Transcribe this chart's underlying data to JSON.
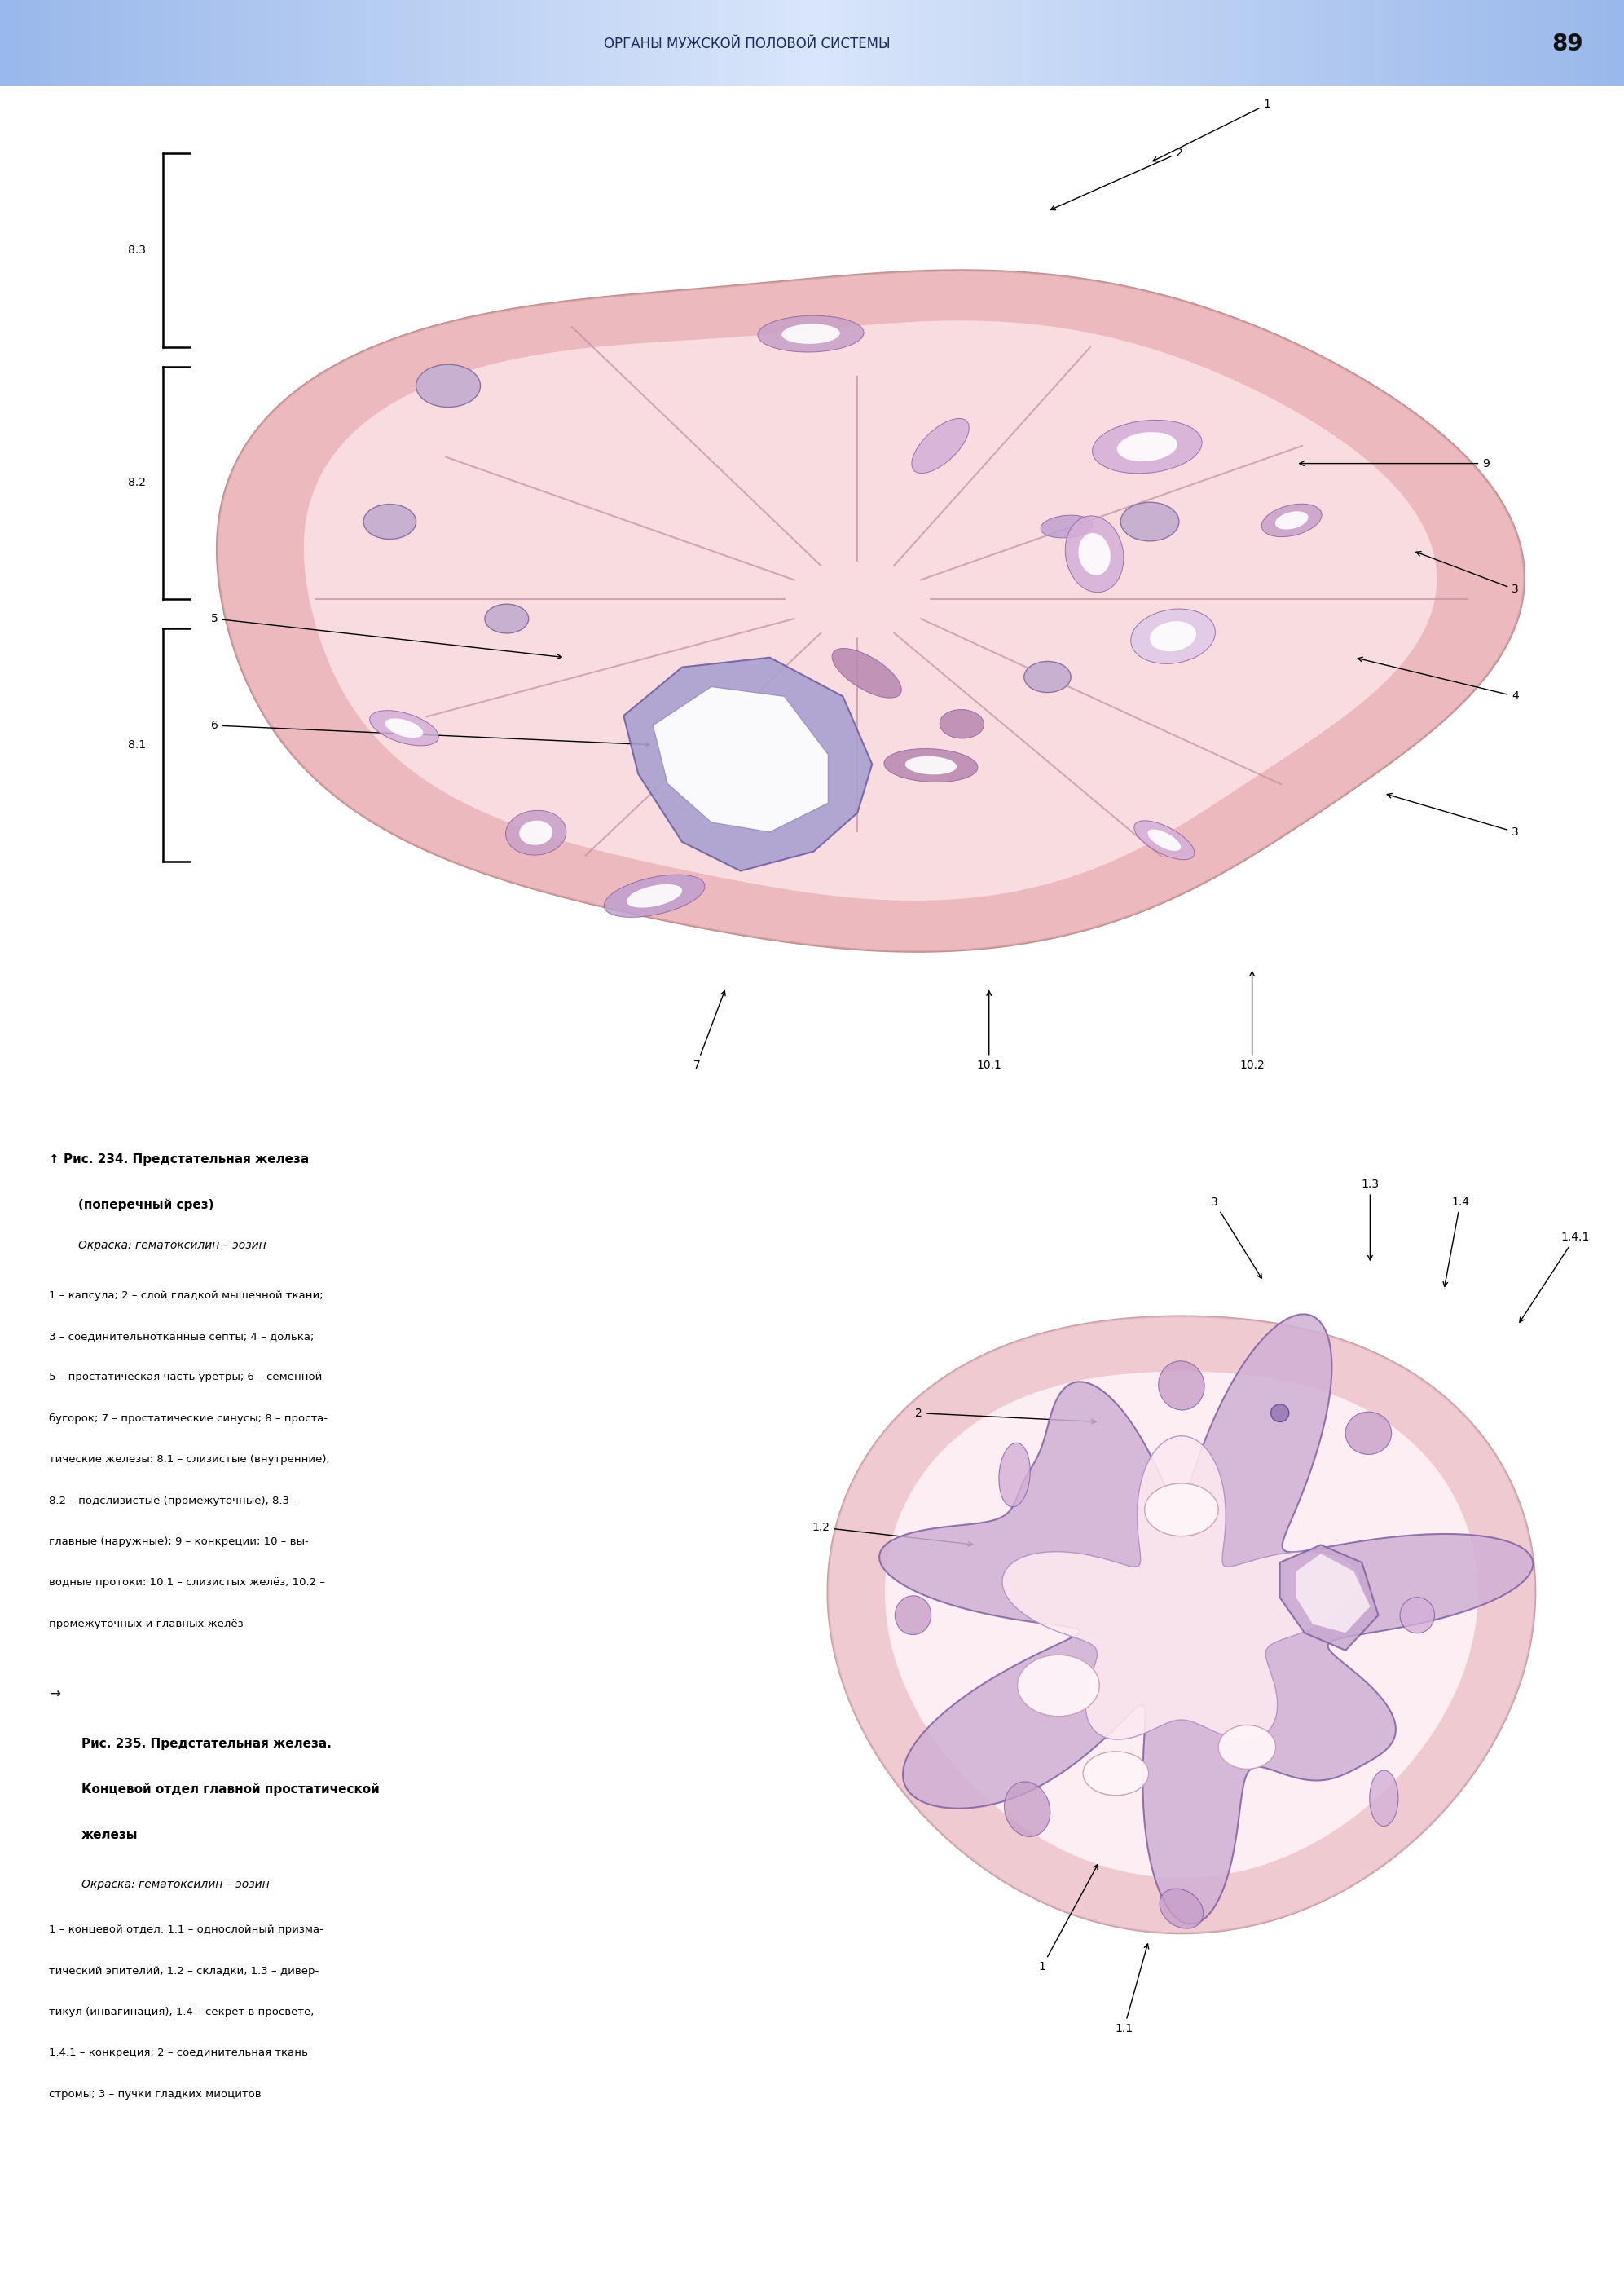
{
  "page_number": "89",
  "header_text": "ОРГАНЫ МУЖСКОЙ ПОЛОВОЙ СИСТЕМЫ",
  "background_color": "#ffffff",
  "fig234": {
    "title_line1": "↑ Рис. 234. Предстательная железа",
    "title_line2": "(поперечный срез)",
    "title_italic": "Окраска: гематоксилин – эозин",
    "desc_lines": [
      "1 – капсула; 2 – слой гладкой мышечной ткани;",
      "3 – соединительнотканные септы; 4 – долька;",
      "5 – простатическая часть уретры; 6 – семенной",
      "бугорок; 7 – простатические синусы; 8 – проста-",
      "тические железы: 8.1 – слизистые (внутренние),",
      "8.2 – подслизистые (промежуточные), 8.3 –",
      "главные (наружные); 9 – конкреции; 10 – вы-",
      "водные протоки: 10.1 – слизистых желёз, 10.2 –",
      "промежуточных и главных желёз"
    ]
  },
  "fig235": {
    "arrow_line": "→",
    "title_line1": "Рис. 235. Предстательная железа.",
    "title_line2": "Концевой отдел главной простатической",
    "title_line3": "железы",
    "title_italic": "Окраска: гематоксилин – эозин",
    "desc_lines": [
      "1 – концевой отдел: 1.1 – однослойный призма-",
      "тический эпителий, 1.2 – складки, 1.3 – дивер-",
      "тикул (инвагинация), 1.4 – секрет в просвете,",
      "1.4.1 – конкреция; 2 – соединительная ткань",
      "стромы; 3 – пучки гладких миоцитов"
    ]
  }
}
